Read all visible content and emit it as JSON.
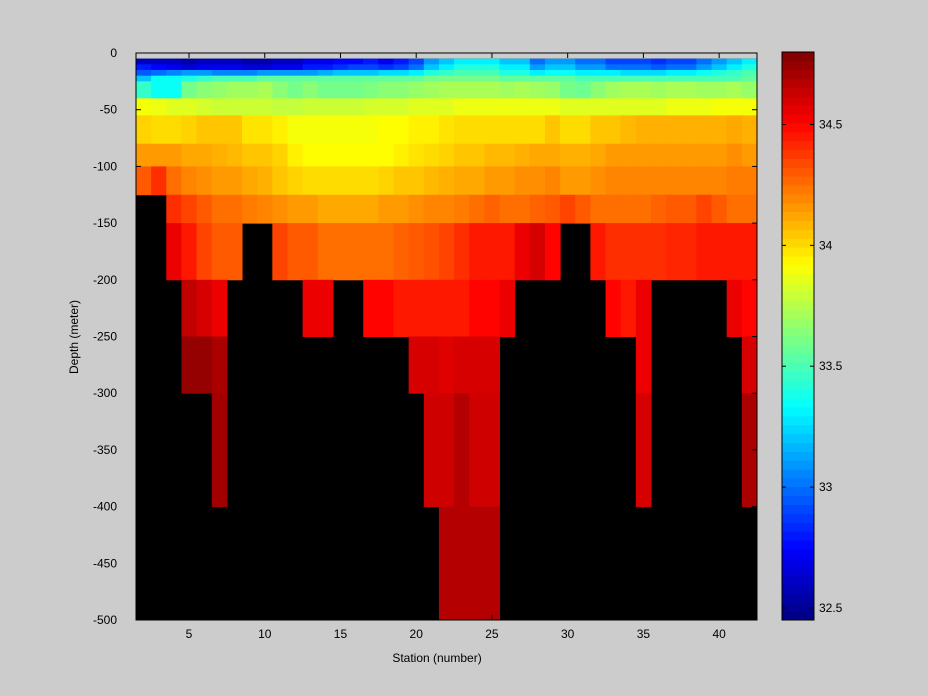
{
  "chart_data": {
    "type": "heatmap",
    "title": "",
    "xlabel": "Station (number)",
    "ylabel": "Depth (meter)",
    "xlim": [
      1.5,
      42.5
    ],
    "ylim": [
      -500,
      0
    ],
    "x_ticks": [
      5,
      10,
      15,
      20,
      25,
      30,
      35,
      40
    ],
    "y_ticks": [
      0,
      -50,
      -100,
      -150,
      -200,
      -250,
      -300,
      -350,
      -400,
      -450,
      -500
    ],
    "colorbar": {
      "range": [
        32.45,
        34.8
      ],
      "ticks": [
        32.5,
        33,
        33.5,
        34,
        34.5
      ],
      "colormap": "jet"
    },
    "missing_color": "#000000",
    "background": "#cccccc",
    "stations": [
      2,
      3,
      4,
      5,
      6,
      7,
      8,
      9,
      10,
      11,
      12,
      13,
      14,
      15,
      16,
      17,
      18,
      19,
      20,
      21,
      22,
      23,
      24,
      25,
      26,
      27,
      28,
      29,
      30,
      31,
      32,
      33,
      34,
      35,
      36,
      37,
      38,
      39,
      40,
      41,
      42
    ],
    "depth_layers": [
      {
        "top": -5,
        "bottom": -10,
        "values": [
          32.6,
          32.6,
          32.6,
          32.55,
          32.6,
          32.6,
          32.6,
          32.55,
          32.55,
          32.6,
          32.6,
          32.7,
          32.7,
          32.75,
          32.75,
          32.8,
          32.7,
          32.8,
          32.9,
          33.1,
          33.2,
          33.3,
          33.3,
          33.3,
          33.2,
          33.2,
          33.0,
          33.1,
          33.1,
          33.0,
          33.0,
          32.9,
          32.9,
          32.9,
          32.85,
          32.9,
          32.9,
          33.0,
          33.1,
          33.2,
          33.3
        ]
      },
      {
        "top": -10,
        "bottom": -15,
        "values": [
          32.8,
          32.75,
          32.7,
          32.65,
          32.7,
          32.7,
          32.7,
          32.65,
          32.65,
          32.7,
          32.7,
          32.8,
          32.8,
          32.85,
          32.9,
          32.9,
          32.85,
          32.9,
          33.0,
          33.2,
          33.3,
          33.4,
          33.4,
          33.4,
          33.3,
          33.3,
          33.1,
          33.2,
          33.2,
          33.1,
          33.1,
          33.0,
          33.0,
          33.0,
          32.95,
          33.0,
          33.0,
          33.1,
          33.2,
          33.3,
          33.4
        ]
      },
      {
        "top": -15,
        "bottom": -20,
        "values": [
          32.95,
          33.0,
          33.05,
          33.1,
          33.1,
          33.05,
          33.05,
          33.05,
          33.1,
          33.1,
          33.1,
          33.1,
          33.15,
          33.2,
          33.2,
          33.2,
          33.25,
          33.25,
          33.3,
          33.4,
          33.45,
          33.5,
          33.5,
          33.5,
          33.4,
          33.4,
          33.3,
          33.35,
          33.35,
          33.3,
          33.3,
          33.3,
          33.25,
          33.25,
          33.25,
          33.3,
          33.3,
          33.35,
          33.4,
          33.45,
          33.5
        ]
      },
      {
        "top": -20,
        "bottom": -25,
        "values": [
          33.2,
          33.35,
          33.35,
          33.4,
          33.45,
          33.5,
          33.5,
          33.5,
          33.55,
          33.55,
          33.55,
          33.55,
          33.55,
          33.55,
          33.55,
          33.55,
          33.55,
          33.55,
          33.55,
          33.6,
          33.6,
          33.6,
          33.6,
          33.6,
          33.55,
          33.55,
          33.55,
          33.55,
          33.55,
          33.5,
          33.5,
          33.5,
          33.5,
          33.5,
          33.5,
          33.5,
          33.5,
          33.5,
          33.5,
          33.5,
          33.55
        ]
      },
      {
        "top": -25,
        "bottom": -40,
        "values": [
          33.45,
          33.35,
          33.35,
          33.6,
          33.65,
          33.67,
          33.7,
          33.7,
          33.72,
          33.65,
          33.6,
          33.65,
          33.6,
          33.6,
          33.6,
          33.62,
          33.65,
          33.65,
          33.68,
          33.7,
          33.72,
          33.72,
          33.72,
          33.72,
          33.7,
          33.72,
          33.7,
          33.68,
          33.6,
          33.58,
          33.65,
          33.7,
          33.72,
          33.72,
          33.7,
          33.72,
          33.72,
          33.7,
          33.7,
          33.72,
          33.68
        ]
      },
      {
        "top": -40,
        "bottom": -55,
        "values": [
          33.9,
          33.88,
          33.85,
          33.85,
          33.82,
          33.8,
          33.8,
          33.8,
          33.8,
          33.78,
          33.78,
          33.8,
          33.8,
          33.8,
          33.8,
          33.82,
          33.82,
          33.82,
          33.85,
          33.85,
          33.85,
          33.88,
          33.88,
          33.88,
          33.88,
          33.88,
          33.88,
          33.88,
          33.85,
          33.85,
          33.85,
          33.85,
          33.85,
          33.85,
          33.85,
          33.88,
          33.88,
          33.88,
          33.9,
          33.9,
          33.9
        ]
      },
      {
        "top": -55,
        "bottom": -80,
        "values": [
          34.02,
          34.0,
          34.0,
          34.02,
          34.05,
          34.05,
          34.05,
          33.98,
          33.98,
          33.95,
          33.9,
          33.9,
          33.9,
          33.9,
          33.9,
          33.9,
          33.92,
          33.92,
          33.95,
          33.95,
          33.98,
          34.0,
          34.0,
          34.0,
          34.0,
          34.0,
          34.0,
          34.05,
          34.0,
          34.0,
          34.05,
          34.05,
          34.08,
          34.1,
          34.1,
          34.1,
          34.1,
          34.1,
          34.1,
          34.12,
          34.1
        ]
      },
      {
        "top": -80,
        "bottom": -100,
        "values": [
          34.15,
          34.15,
          34.15,
          34.12,
          34.12,
          34.1,
          34.08,
          34.05,
          34.05,
          34.02,
          33.95,
          33.92,
          33.92,
          33.92,
          33.92,
          33.92,
          33.92,
          33.95,
          33.98,
          34.0,
          34.02,
          34.05,
          34.05,
          34.08,
          34.08,
          34.1,
          34.12,
          34.12,
          34.1,
          34.1,
          34.12,
          34.15,
          34.15,
          34.15,
          34.15,
          34.15,
          34.15,
          34.15,
          34.15,
          34.18,
          34.15
        ]
      },
      {
        "top": -100,
        "bottom": -125,
        "values": [
          34.3,
          34.4,
          34.25,
          34.2,
          34.18,
          34.15,
          34.15,
          34.12,
          34.1,
          34.05,
          34.02,
          34.0,
          34.0,
          34.0,
          34.0,
          34.0,
          34.02,
          34.05,
          34.05,
          34.08,
          34.1,
          34.12,
          34.12,
          34.15,
          34.15,
          34.18,
          34.18,
          34.2,
          34.15,
          34.15,
          34.18,
          34.2,
          34.2,
          34.2,
          34.2,
          34.2,
          34.2,
          34.2,
          34.2,
          34.22,
          34.22
        ]
      },
      {
        "top": -125,
        "bottom": -150,
        "values": [
          null,
          null,
          34.4,
          34.35,
          34.3,
          34.25,
          34.25,
          34.22,
          34.2,
          34.18,
          34.15,
          34.15,
          34.12,
          34.12,
          34.12,
          34.12,
          34.15,
          34.15,
          34.18,
          34.2,
          34.2,
          34.22,
          34.25,
          34.28,
          34.25,
          34.25,
          34.28,
          34.3,
          34.35,
          34.3,
          34.25,
          34.25,
          34.25,
          34.25,
          34.28,
          34.3,
          34.3,
          34.35,
          34.3,
          34.25,
          34.25
        ]
      },
      {
        "top": -150,
        "bottom": -200,
        "values": [
          null,
          null,
          34.55,
          34.45,
          34.35,
          34.3,
          34.3,
          null,
          null,
          34.35,
          34.3,
          34.3,
          34.25,
          34.25,
          34.25,
          34.25,
          34.25,
          34.28,
          34.3,
          34.32,
          34.35,
          34.4,
          34.45,
          34.45,
          34.45,
          34.55,
          34.6,
          34.5,
          null,
          null,
          34.45,
          34.4,
          34.4,
          34.4,
          34.4,
          34.42,
          34.42,
          34.45,
          34.45,
          34.45,
          34.45
        ]
      },
      {
        "top": -200,
        "bottom": -250,
        "values": [
          null,
          null,
          null,
          34.65,
          34.6,
          34.55,
          null,
          null,
          null,
          null,
          null,
          34.55,
          34.55,
          null,
          null,
          34.5,
          34.5,
          34.45,
          34.45,
          34.45,
          34.45,
          34.45,
          34.5,
          34.5,
          34.55,
          null,
          null,
          null,
          null,
          null,
          null,
          34.5,
          34.45,
          34.55,
          null,
          null,
          null,
          null,
          null,
          34.55,
          34.5
        ]
      },
      {
        "top": -250,
        "bottom": -275,
        "values": [
          null,
          null,
          null,
          34.75,
          34.75,
          34.7,
          null,
          null,
          null,
          null,
          null,
          null,
          null,
          null,
          null,
          null,
          null,
          null,
          34.6,
          34.6,
          34.58,
          34.6,
          34.6,
          34.6,
          null,
          null,
          null,
          null,
          null,
          null,
          null,
          null,
          null,
          34.55,
          null,
          null,
          null,
          null,
          null,
          null,
          34.6
        ]
      },
      {
        "top": -275,
        "bottom": -300,
        "values": [
          null,
          null,
          null,
          34.75,
          34.75,
          34.7,
          null,
          null,
          null,
          null,
          null,
          null,
          null,
          null,
          null,
          null,
          null,
          null,
          34.6,
          34.6,
          34.58,
          34.6,
          34.6,
          34.6,
          null,
          null,
          null,
          null,
          null,
          null,
          null,
          null,
          null,
          34.55,
          null,
          null,
          null,
          null,
          null,
          null,
          34.6
        ]
      },
      {
        "top": -300,
        "bottom": -350,
        "values": [
          null,
          null,
          null,
          null,
          null,
          34.72,
          null,
          null,
          null,
          null,
          null,
          null,
          null,
          null,
          null,
          null,
          null,
          null,
          null,
          34.62,
          34.62,
          34.68,
          34.62,
          34.62,
          null,
          null,
          null,
          null,
          null,
          null,
          null,
          null,
          null,
          34.6,
          null,
          null,
          null,
          null,
          null,
          null,
          34.7
        ]
      },
      {
        "top": -350,
        "bottom": -400,
        "values": [
          null,
          null,
          null,
          null,
          null,
          34.72,
          null,
          null,
          null,
          null,
          null,
          null,
          null,
          null,
          null,
          null,
          null,
          null,
          null,
          34.62,
          34.62,
          34.68,
          34.62,
          34.62,
          null,
          null,
          null,
          null,
          null,
          null,
          null,
          null,
          null,
          34.6,
          null,
          null,
          null,
          null,
          null,
          null,
          34.7
        ]
      },
      {
        "top": -400,
        "bottom": -500,
        "values": [
          null,
          null,
          null,
          null,
          null,
          null,
          null,
          null,
          null,
          null,
          null,
          null,
          null,
          null,
          null,
          null,
          null,
          null,
          null,
          null,
          34.68,
          34.68,
          34.68,
          34.68,
          null,
          null,
          null,
          null,
          null,
          null,
          null,
          null,
          null,
          null,
          null,
          null,
          null,
          null,
          null,
          null,
          null
        ]
      }
    ]
  }
}
